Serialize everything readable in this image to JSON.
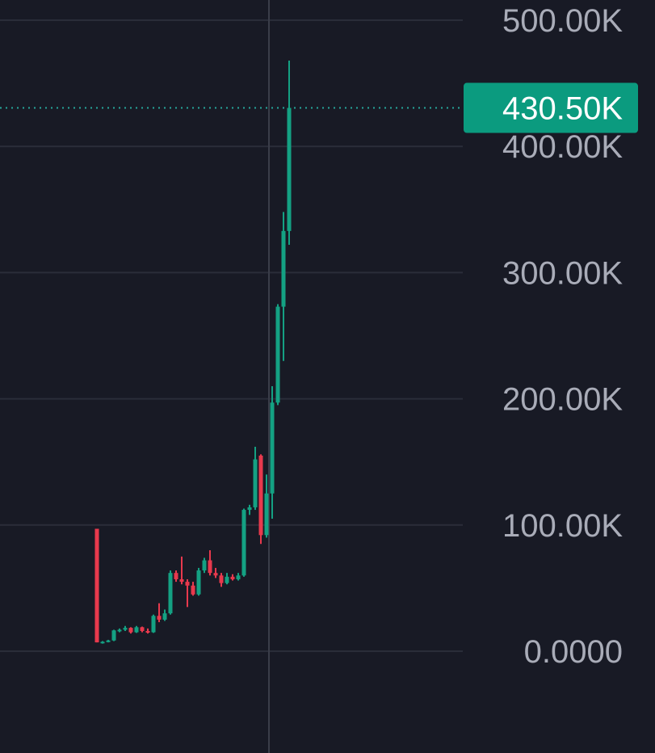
{
  "colors": {
    "background": "#181a25",
    "grid": "#2a2d39",
    "crosshair": "#3a3d49",
    "up": "#14a183",
    "down": "#e8394d",
    "axis_text": "#a9acb8",
    "price_tag_bg": "#0b9b7f",
    "price_tag_text": "#ffffff",
    "price_line": "#26a69a"
  },
  "chart_data": {
    "type": "candlestick",
    "y_axis": {
      "ylim": [
        0,
        500000
      ],
      "ticks": [
        {
          "value": 500000,
          "label": "500.00K"
        },
        {
          "value": 400000,
          "label": "400.00K"
        },
        {
          "value": 300000,
          "label": "300.00K"
        },
        {
          "value": 200000,
          "label": "200.00K"
        },
        {
          "value": 100000,
          "label": "100.00K"
        },
        {
          "value": 0,
          "label": "0.0000"
        }
      ]
    },
    "grid": true,
    "crosshair": true,
    "current_price": {
      "value": 430500,
      "label": "430.50K"
    },
    "candles": [
      {
        "o": 97000,
        "h": 97000,
        "l": 7000,
        "c": 7000
      },
      {
        "o": 7000,
        "h": 8000,
        "l": 6000,
        "c": 7500
      },
      {
        "o": 7500,
        "h": 9000,
        "l": 7000,
        "c": 8500
      },
      {
        "o": 8500,
        "h": 17000,
        "l": 8000,
        "c": 16500
      },
      {
        "o": 16500,
        "h": 18000,
        "l": 15000,
        "c": 17000
      },
      {
        "o": 17000,
        "h": 20000,
        "l": 16000,
        "c": 18500
      },
      {
        "o": 18500,
        "h": 19000,
        "l": 14000,
        "c": 15000
      },
      {
        "o": 15000,
        "h": 20000,
        "l": 14500,
        "c": 19000
      },
      {
        "o": 19000,
        "h": 19500,
        "l": 15000,
        "c": 16000
      },
      {
        "o": 16000,
        "h": 18000,
        "l": 14000,
        "c": 15000
      },
      {
        "o": 15000,
        "h": 29000,
        "l": 14500,
        "c": 28000
      },
      {
        "o": 28000,
        "h": 38000,
        "l": 23000,
        "c": 25000
      },
      {
        "o": 25000,
        "h": 33000,
        "l": 24000,
        "c": 30000
      },
      {
        "o": 30000,
        "h": 64000,
        "l": 29000,
        "c": 62000
      },
      {
        "o": 62000,
        "h": 64000,
        "l": 55000,
        "c": 57000
      },
      {
        "o": 57000,
        "h": 75000,
        "l": 53000,
        "c": 55000
      },
      {
        "o": 55000,
        "h": 57000,
        "l": 35000,
        "c": 52000
      },
      {
        "o": 52000,
        "h": 55000,
        "l": 44000,
        "c": 45000
      },
      {
        "o": 45000,
        "h": 66000,
        "l": 44000,
        "c": 64000
      },
      {
        "o": 64000,
        "h": 74000,
        "l": 62000,
        "c": 72000
      },
      {
        "o": 72000,
        "h": 80000,
        "l": 60000,
        "c": 62000
      },
      {
        "o": 62000,
        "h": 66000,
        "l": 58000,
        "c": 60000
      },
      {
        "o": 60000,
        "h": 62000,
        "l": 51000,
        "c": 54000
      },
      {
        "o": 54000,
        "h": 62000,
        "l": 53000,
        "c": 59000
      },
      {
        "o": 59000,
        "h": 61000,
        "l": 56000,
        "c": 57000
      },
      {
        "o": 57000,
        "h": 62000,
        "l": 56000,
        "c": 60000
      },
      {
        "o": 60000,
        "h": 113000,
        "l": 59000,
        "c": 112000
      },
      {
        "o": 112000,
        "h": 116000,
        "l": 108000,
        "c": 114000
      },
      {
        "o": 114000,
        "h": 162000,
        "l": 112000,
        "c": 152000
      },
      {
        "o": 155000,
        "h": 156000,
        "l": 85000,
        "c": 92000
      },
      {
        "o": 92000,
        "h": 140000,
        "l": 90000,
        "c": 125000
      },
      {
        "o": 125000,
        "h": 210000,
        "l": 105000,
        "c": 197000
      },
      {
        "o": 197000,
        "h": 275000,
        "l": 195000,
        "c": 273000
      },
      {
        "o": 273000,
        "h": 348000,
        "l": 230000,
        "c": 333000
      },
      {
        "o": 333000,
        "h": 468000,
        "l": 322000,
        "c": 430500
      }
    ]
  }
}
